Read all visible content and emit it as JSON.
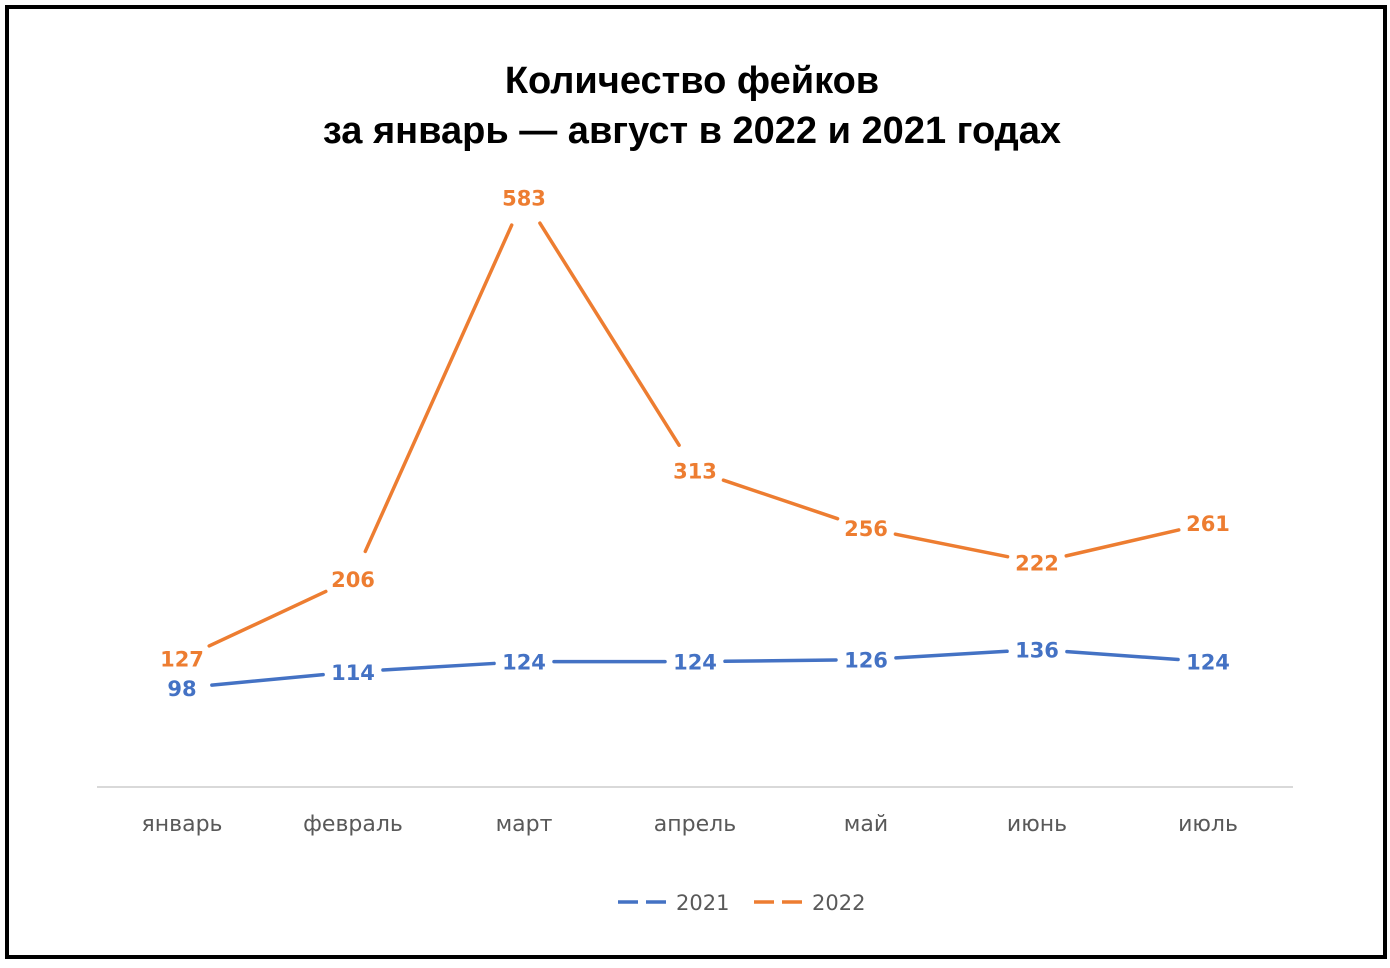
{
  "chart_data": {
    "type": "line",
    "title_line1": "Количество фейков",
    "title_line2": "за январь — август в 2022 и 2021 годах",
    "categories": [
      "январь",
      "февраль",
      "март",
      "апрель",
      "май",
      "июнь",
      "июль"
    ],
    "series": [
      {
        "name": "2021",
        "color": "#4472c4",
        "values": [
          98,
          114,
          124,
          124,
          126,
          136,
          124
        ]
      },
      {
        "name": "2022",
        "color": "#ed7d31",
        "values": [
          127,
          206,
          583,
          313,
          256,
          222,
          261
        ]
      }
    ],
    "xlabel": "",
    "ylabel": "",
    "ylim": [
      0,
      650
    ],
    "grid": false,
    "legend": "bottom",
    "data_labels": true
  }
}
